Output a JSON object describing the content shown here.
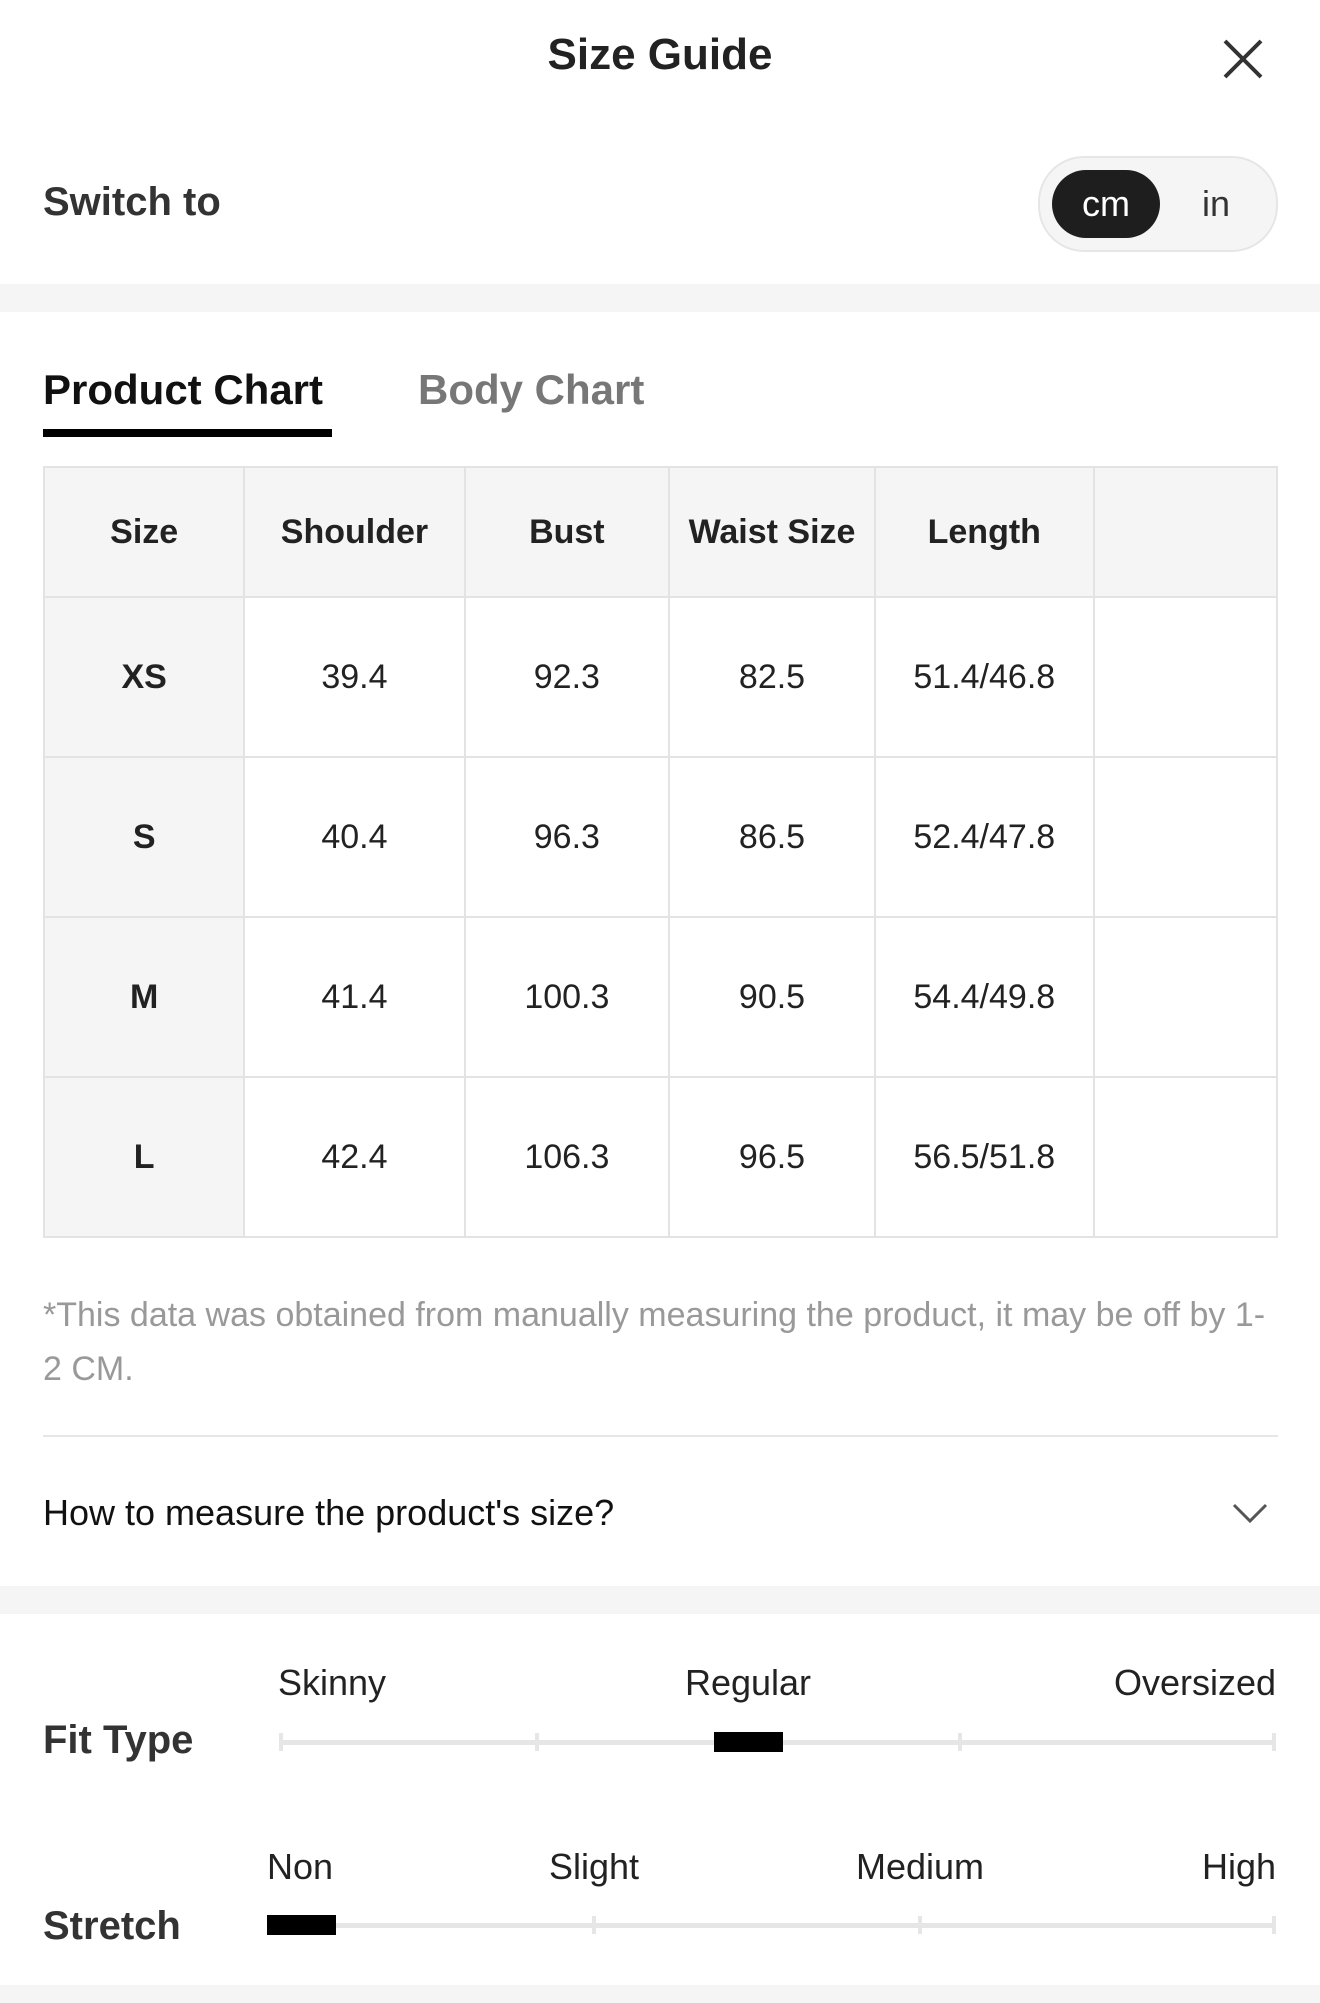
{
  "header": {
    "title": "Size Guide"
  },
  "switch": {
    "label": "Switch to",
    "options": [
      "cm",
      "in"
    ]
  },
  "tabs": [
    "Product Chart",
    "Body Chart"
  ],
  "table": {
    "columns": [
      "Size",
      "Shoulder",
      "Bust",
      "Waist Size",
      "Length"
    ],
    "rows": [
      [
        "XS",
        "39.4",
        "92.3",
        "82.5",
        "51.4/46.8"
      ],
      [
        "S",
        "40.4",
        "96.3",
        "86.5",
        "52.4/47.8"
      ],
      [
        "M",
        "41.4",
        "100.3",
        "90.5",
        "54.4/49.8"
      ],
      [
        "L",
        "42.4",
        "106.3",
        "96.5",
        "56.5/51.8"
      ]
    ]
  },
  "note": "*This data was obtained from manually measuring the product, it may be off by 1-2 CM.",
  "accordion": {
    "label": "How to measure the product's size?"
  },
  "fit_type": {
    "label": "Fit Type",
    "scale": [
      "Skinny",
      "Regular",
      "Oversized"
    ]
  },
  "stretch": {
    "label": "Stretch",
    "scale": [
      "Non",
      "Slight",
      "Medium",
      "High"
    ]
  }
}
